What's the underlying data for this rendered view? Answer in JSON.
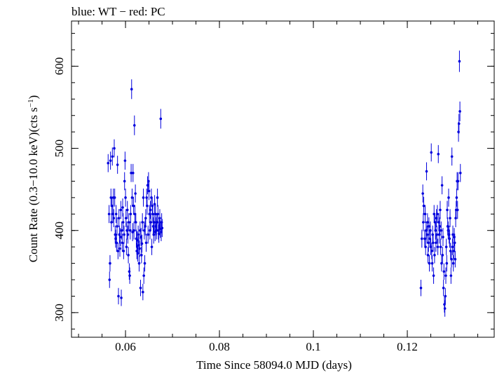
{
  "chart_data": {
    "type": "scatter",
    "title": "blue: WT − red: PC",
    "xlabel": "Time Since 58094.0 MJD (days)",
    "ylabel_main": "Count Rate (0.3−10.0 keV)(cts s",
    "ylabel_sup": "−1",
    "ylabel_close": ")",
    "xlim": [
      0.0485,
      0.1385
    ],
    "ylim": [
      270,
      655
    ],
    "xticks": [
      0.06,
      0.08,
      0.1,
      0.12
    ],
    "xtick_labels": [
      "0.06",
      "0.08",
      "0.1",
      "0.12"
    ],
    "yticks": [
      300,
      400,
      500,
      600
    ],
    "ytick_labels": [
      "300",
      "400",
      "500",
      "600"
    ],
    "x_minor_step": 0.005,
    "y_minor_step": 20,
    "grid": false,
    "series": [
      {
        "color": "#0000dd",
        "points": [
          [
            0.0563,
            482,
            11
          ],
          [
            0.0565,
            420,
            11
          ],
          [
            0.0566,
            340,
            10
          ],
          [
            0.0567,
            360,
            10
          ],
          [
            0.0568,
            485,
            11
          ],
          [
            0.0569,
            440,
            11
          ],
          [
            0.057,
            410,
            11
          ],
          [
            0.0571,
            430,
            11
          ],
          [
            0.0572,
            490,
            11
          ],
          [
            0.0573,
            420,
            11
          ],
          [
            0.0574,
            440,
            11
          ],
          [
            0.0575,
            415,
            11
          ],
          [
            0.0576,
            500,
            11
          ],
          [
            0.0577,
            440,
            11
          ],
          [
            0.0578,
            395,
            11
          ],
          [
            0.0579,
            390,
            11
          ],
          [
            0.058,
            420,
            11
          ],
          [
            0.0581,
            385,
            11
          ],
          [
            0.0582,
            405,
            11
          ],
          [
            0.0583,
            480,
            11
          ],
          [
            0.0584,
            375,
            10
          ],
          [
            0.0585,
            320,
            10
          ],
          [
            0.0586,
            415,
            11
          ],
          [
            0.0587,
            395,
            11
          ],
          [
            0.0588,
            378,
            10
          ],
          [
            0.0589,
            392,
            11
          ],
          [
            0.059,
            425,
            11
          ],
          [
            0.0591,
            318,
            10
          ],
          [
            0.0592,
            400,
            11
          ],
          [
            0.0593,
            385,
            11
          ],
          [
            0.0594,
            428,
            11
          ],
          [
            0.0595,
            410,
            11
          ],
          [
            0.0596,
            375,
            10
          ],
          [
            0.0597,
            395,
            11
          ],
          [
            0.0598,
            460,
            11
          ],
          [
            0.0599,
            485,
            11
          ],
          [
            0.06,
            440,
            11
          ],
          [
            0.0601,
            415,
            11
          ],
          [
            0.0602,
            380,
            10
          ],
          [
            0.0603,
            400,
            11
          ],
          [
            0.0604,
            425,
            11
          ],
          [
            0.0605,
            395,
            11
          ],
          [
            0.0606,
            370,
            10
          ],
          [
            0.0607,
            410,
            11
          ],
          [
            0.0608,
            350,
            10
          ],
          [
            0.0609,
            345,
            10
          ],
          [
            0.061,
            400,
            11
          ],
          [
            0.0611,
            420,
            11
          ],
          [
            0.0612,
            470,
            11
          ],
          [
            0.0613,
            572,
            12
          ],
          [
            0.0614,
            440,
            11
          ],
          [
            0.0615,
            398,
            11
          ],
          [
            0.0616,
            470,
            11
          ],
          [
            0.0617,
            430,
            11
          ],
          [
            0.0618,
            400,
            11
          ],
          [
            0.0619,
            528,
            12
          ],
          [
            0.062,
            420,
            11
          ],
          [
            0.0621,
            445,
            11
          ],
          [
            0.0622,
            410,
            11
          ],
          [
            0.0623,
            390,
            11
          ],
          [
            0.0624,
            375,
            10
          ],
          [
            0.0625,
            388,
            11
          ],
          [
            0.0626,
            372,
            10
          ],
          [
            0.0627,
            395,
            11
          ],
          [
            0.0628,
            382,
            11
          ],
          [
            0.0629,
            360,
            10
          ],
          [
            0.063,
            378,
            10
          ],
          [
            0.0631,
            400,
            11
          ],
          [
            0.0632,
            330,
            10
          ],
          [
            0.0633,
            392,
            11
          ],
          [
            0.0634,
            370,
            10
          ],
          [
            0.0635,
            384,
            11
          ],
          [
            0.0636,
            410,
            11
          ],
          [
            0.0637,
            325,
            10
          ],
          [
            0.0638,
            440,
            11
          ],
          [
            0.0639,
            345,
            10
          ],
          [
            0.064,
            400,
            11
          ],
          [
            0.0641,
            360,
            10
          ],
          [
            0.0642,
            405,
            11
          ],
          [
            0.0643,
            415,
            11
          ],
          [
            0.0644,
            385,
            11
          ],
          [
            0.0645,
            440,
            11
          ],
          [
            0.0646,
            430,
            11
          ],
          [
            0.0647,
            455,
            11
          ],
          [
            0.0648,
            395,
            11
          ],
          [
            0.0649,
            460,
            11
          ],
          [
            0.065,
            448,
            11
          ],
          [
            0.0651,
            420,
            11
          ],
          [
            0.0652,
            400,
            11
          ],
          [
            0.0653,
            425,
            11
          ],
          [
            0.0654,
            410,
            11
          ],
          [
            0.0655,
            440,
            11
          ],
          [
            0.0656,
            380,
            10
          ],
          [
            0.0657,
            430,
            11
          ],
          [
            0.0658,
            420,
            11
          ],
          [
            0.0659,
            405,
            11
          ],
          [
            0.066,
            395,
            11
          ],
          [
            0.0661,
            410,
            11
          ],
          [
            0.0662,
            432,
            11
          ],
          [
            0.0663,
            398,
            11
          ],
          [
            0.0664,
            420,
            11
          ],
          [
            0.0665,
            405,
            11
          ],
          [
            0.0666,
            400,
            11
          ],
          [
            0.0667,
            410,
            11
          ],
          [
            0.0668,
            440,
            11
          ],
          [
            0.0669,
            420,
            11
          ],
          [
            0.067,
            400,
            11
          ],
          [
            0.0671,
            396,
            11
          ],
          [
            0.0672,
            405,
            11
          ],
          [
            0.0673,
            415,
            11
          ],
          [
            0.0674,
            402,
            11
          ],
          [
            0.0675,
            536,
            12
          ],
          [
            0.0676,
            398,
            11
          ],
          [
            0.0677,
            410,
            11
          ],
          [
            0.0678,
            403,
            11
          ],
          [
            0.1229,
            330,
            10
          ],
          [
            0.1231,
            390,
            11
          ],
          [
            0.1233,
            445,
            11
          ],
          [
            0.1234,
            410,
            11
          ],
          [
            0.1235,
            430,
            11
          ],
          [
            0.1237,
            390,
            11
          ],
          [
            0.1238,
            420,
            11
          ],
          [
            0.1239,
            380,
            10
          ],
          [
            0.124,
            400,
            11
          ],
          [
            0.1241,
            472,
            11
          ],
          [
            0.1242,
            395,
            11
          ],
          [
            0.1243,
            410,
            11
          ],
          [
            0.1244,
            370,
            10
          ],
          [
            0.1245,
            385,
            11
          ],
          [
            0.1246,
            405,
            11
          ],
          [
            0.1247,
            360,
            10
          ],
          [
            0.1248,
            390,
            11
          ],
          [
            0.1249,
            400,
            11
          ],
          [
            0.125,
            380,
            10
          ],
          [
            0.1251,
            495,
            11
          ],
          [
            0.1252,
            375,
            10
          ],
          [
            0.1253,
            360,
            10
          ],
          [
            0.1254,
            395,
            11
          ],
          [
            0.1255,
            385,
            11
          ],
          [
            0.1256,
            345,
            10
          ],
          [
            0.1257,
            420,
            11
          ],
          [
            0.1258,
            370,
            10
          ],
          [
            0.1259,
            410,
            11
          ],
          [
            0.126,
            400,
            11
          ],
          [
            0.1261,
            385,
            11
          ],
          [
            0.1262,
            415,
            11
          ],
          [
            0.1263,
            395,
            11
          ],
          [
            0.1264,
            420,
            11
          ],
          [
            0.1265,
            380,
            10
          ],
          [
            0.1266,
            493,
            11
          ],
          [
            0.1267,
            410,
            11
          ],
          [
            0.1268,
            395,
            11
          ],
          [
            0.1269,
            405,
            11
          ],
          [
            0.127,
            425,
            11
          ],
          [
            0.1271,
            380,
            10
          ],
          [
            0.1272,
            400,
            11
          ],
          [
            0.1273,
            360,
            10
          ],
          [
            0.1274,
            455,
            11
          ],
          [
            0.1275,
            370,
            10
          ],
          [
            0.1276,
            392,
            11
          ],
          [
            0.1277,
            330,
            10
          ],
          [
            0.1278,
            350,
            10
          ],
          [
            0.1279,
            310,
            10
          ],
          [
            0.128,
            305,
            10
          ],
          [
            0.1281,
            320,
            10
          ],
          [
            0.1282,
            345,
            10
          ],
          [
            0.1283,
            380,
            10
          ],
          [
            0.1284,
            360,
            10
          ],
          [
            0.1285,
            425,
            11
          ],
          [
            0.1286,
            405,
            11
          ],
          [
            0.1287,
            400,
            11
          ],
          [
            0.1288,
            440,
            11
          ],
          [
            0.1289,
            395,
            11
          ],
          [
            0.129,
            390,
            11
          ],
          [
            0.1291,
            415,
            11
          ],
          [
            0.1292,
            375,
            10
          ],
          [
            0.1293,
            345,
            10
          ],
          [
            0.1294,
            365,
            10
          ],
          [
            0.1295,
            490,
            11
          ],
          [
            0.1296,
            380,
            10
          ],
          [
            0.1297,
            395,
            11
          ],
          [
            0.1298,
            360,
            10
          ],
          [
            0.1299,
            375,
            10
          ],
          [
            0.13,
            392,
            11
          ],
          [
            0.1301,
            385,
            11
          ],
          [
            0.1302,
            365,
            10
          ],
          [
            0.1303,
            415,
            11
          ],
          [
            0.1304,
            425,
            11
          ],
          [
            0.1305,
            440,
            11
          ],
          [
            0.1306,
            460,
            11
          ],
          [
            0.1307,
            425,
            11
          ],
          [
            0.1308,
            460,
            11
          ],
          [
            0.1309,
            520,
            12
          ],
          [
            0.131,
            530,
            12
          ],
          [
            0.1311,
            606,
            13
          ],
          [
            0.1312,
            545,
            12
          ],
          [
            0.1313,
            470,
            11
          ]
        ]
      }
    ]
  }
}
